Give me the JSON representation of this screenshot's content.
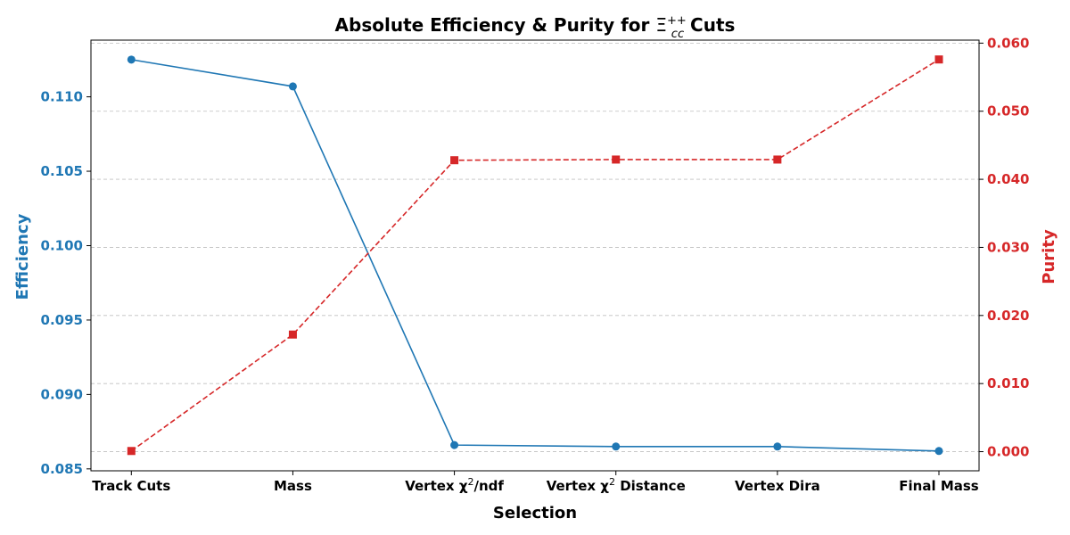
{
  "chart_data": {
    "type": "line",
    "title": "Absolute Efficiency & Purity for Ξ⁺⁺cc Cuts",
    "title_main": "Absolute Efficiency & Purity for ",
    "title_symbol": "Ξ",
    "title_sup": "++",
    "title_sub": "cc",
    "title_tail": " Cuts",
    "xlabel": "Selection",
    "categories": [
      "Track Cuts",
      "Mass",
      "Vertex χ²/ndf",
      "Vertex χ² Distance",
      "Vertex Dira",
      "Final Mass"
    ],
    "categories_display": [
      {
        "pre": "Track Cuts",
        "sup": "",
        "post": ""
      },
      {
        "pre": "Mass",
        "sup": "",
        "post": ""
      },
      {
        "pre": "Vertex χ",
        "sup": "2",
        "post": "/ndf"
      },
      {
        "pre": "Vertex χ",
        "sup": "2",
        "post": " Distance"
      },
      {
        "pre": "Vertex Dira",
        "sup": "",
        "post": ""
      },
      {
        "pre": "Final Mass",
        "sup": "",
        "post": ""
      }
    ],
    "series": [
      {
        "name": "Efficiency",
        "axis": "left",
        "color": "#1f77b4",
        "marker": "circle",
        "linestyle": "solid",
        "values": [
          0.1125,
          0.1107,
          0.0866,
          0.0865,
          0.0865,
          0.0862
        ]
      },
      {
        "name": "Purity",
        "axis": "right",
        "color": "#d62728",
        "marker": "square",
        "linestyle": "dashed",
        "values": [
          0.0001,
          0.0172,
          0.0428,
          0.0429,
          0.0429,
          0.0576
        ]
      }
    ],
    "y_left": {
      "label": "Efficiency",
      "ylim": [
        0.08487,
        0.11381
      ],
      "ticks": [
        0.085,
        0.09,
        0.095,
        0.1,
        0.105,
        0.11
      ],
      "tick_labels": [
        "0.085",
        "0.090",
        "0.095",
        "0.100",
        "0.105",
        "0.110"
      ]
    },
    "y_right": {
      "label": "Purity",
      "ylim": [
        -0.00281,
        0.06044
      ],
      "ticks": [
        0.0,
        0.01,
        0.02,
        0.03,
        0.04,
        0.05,
        0.06
      ],
      "tick_labels": [
        "0.000",
        "0.010",
        "0.020",
        "0.030",
        "0.040",
        "0.050",
        "0.060"
      ]
    },
    "grid": "horizontal, dashed (right axis ticks)"
  }
}
